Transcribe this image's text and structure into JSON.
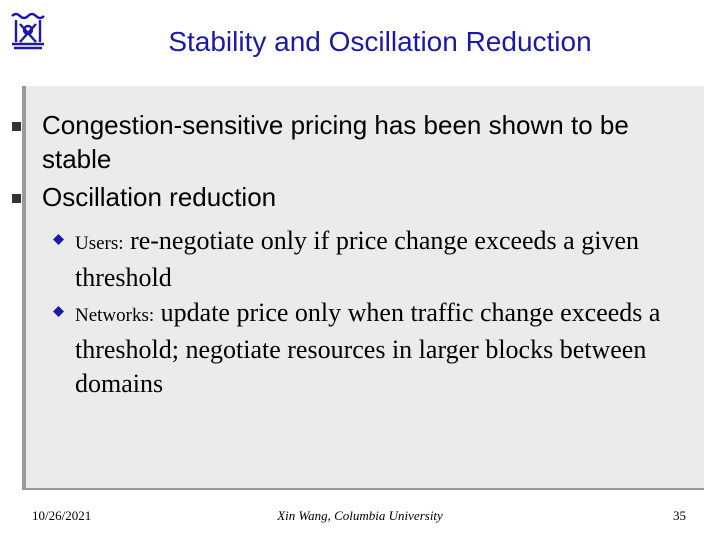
{
  "slide": {
    "title": "Stability and Oscillation Reduction",
    "logo": {
      "icon": "university-crest-icon",
      "color": "#1a1aa6"
    },
    "bullets": [
      {
        "text": "Congestion-sensitive pricing has been shown to be stable"
      },
      {
        "text": "Oscillation reduction",
        "sub": [
          {
            "lead": "Users:",
            "text": "re-negotiate only if price change exceeds a given threshold"
          },
          {
            "lead": "Networks:",
            "text": "update price only when traffic change exceeds a threshold; negotiate resources in larger blocks between domains"
          }
        ]
      }
    ],
    "footer": {
      "date": "10/26/2021",
      "author": "Xin Wang, Columbia University",
      "page": "35"
    },
    "colors": {
      "title": "#1a1aa6",
      "content_bg": "#ebebeb",
      "sub_marker": "#1a1aa6"
    }
  }
}
